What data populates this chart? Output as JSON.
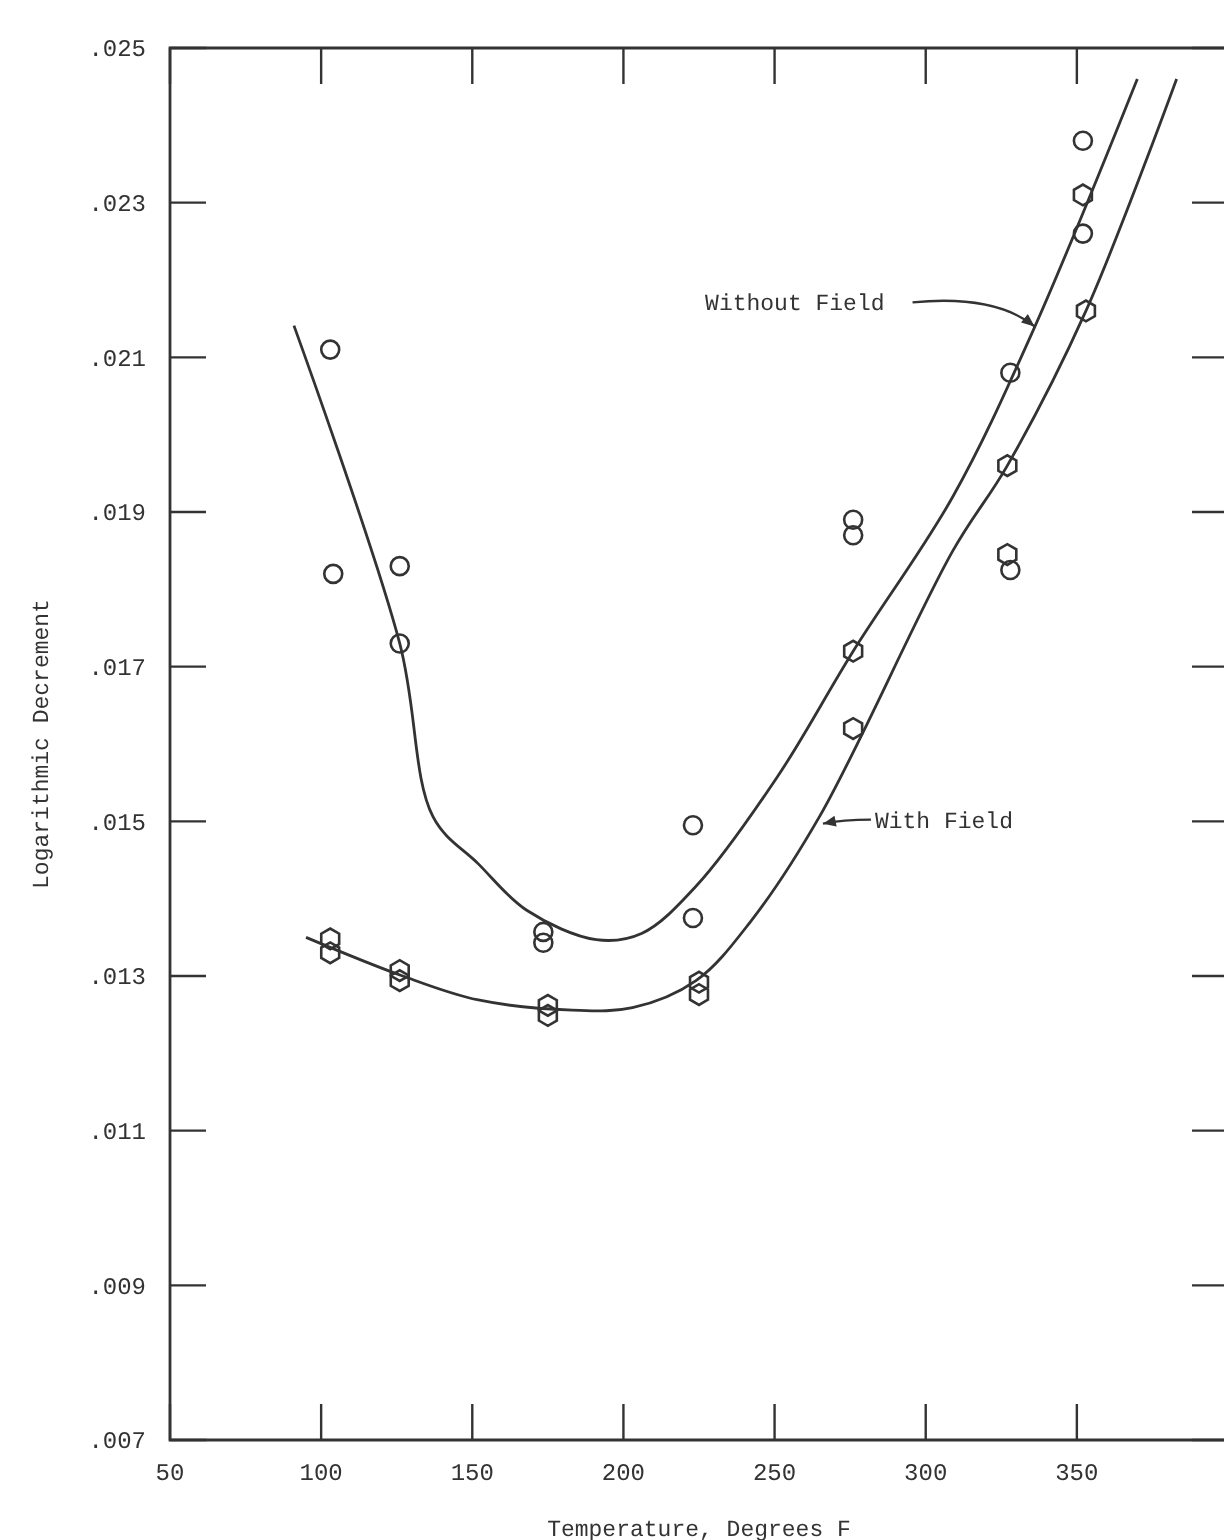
{
  "chart_data": {
    "type": "scatter",
    "xlabel": "Temperature, Degrees F",
    "ylabel": "Logarithmic Decrement",
    "xlim": [
      50,
      400
    ],
    "xticks": [
      50,
      100,
      150,
      200,
      250,
      300,
      350
    ],
    "ylim": [
      0.007,
      0.025
    ],
    "yticks": [
      {
        "value": 0.007,
        "label": ".007"
      },
      {
        "value": 0.009,
        "label": ".009"
      },
      {
        "value": 0.011,
        "label": ".011"
      },
      {
        "value": 0.013,
        "label": ".013"
      },
      {
        "value": 0.015,
        "label": ".015"
      },
      {
        "value": 0.017,
        "label": ".017"
      },
      {
        "value": 0.019,
        "label": ".019"
      },
      {
        "value": 0.021,
        "label": ".021"
      },
      {
        "value": 0.023,
        "label": ".023"
      },
      {
        "value": 0.025,
        "label": ".025"
      }
    ],
    "grid": false,
    "series": [
      {
        "marker": "circle",
        "color": "#333333",
        "x": [
          103,
          104,
          126,
          126,
          173.5,
          173.5,
          223,
          223,
          276,
          276,
          328,
          328,
          352,
          352
        ],
        "values": [
          0.0211,
          0.0182,
          0.0183,
          0.0173,
          0.01357,
          0.01343,
          0.01495,
          0.01375,
          0.0189,
          0.0187,
          0.0208,
          0.01825,
          0.0238,
          0.0226
        ]
      },
      {
        "color": "#333333",
        "x": [
          103,
          103,
          126,
          126,
          175,
          175,
          225,
          225,
          276,
          276,
          327,
          327,
          352,
          353
        ],
        "values": [
          0.01348,
          0.0133,
          0.01307,
          0.01294,
          0.01262,
          0.01249,
          0.01292,
          0.01276,
          0.0172,
          0.0162,
          0.0196,
          0.01845,
          0.0231,
          0.0216
        ]
      },
      {
        "type": "line",
        "marker": "none",
        "line_style": "solid",
        "color": "#333333",
        "x": [
          91,
          126,
          137,
          152,
          168,
          191,
          206,
          224,
          251,
          276,
          309,
          335,
          370
        ],
        "values": [
          0.02141,
          0.0173,
          0.01506,
          0.01445,
          0.01385,
          0.01347,
          0.01355,
          0.01416,
          0.01558,
          0.0172,
          0.0192,
          0.0213,
          0.0246
        ]
      },
      {
        "type": "line",
        "marker": "none",
        "line_style": "solid",
        "color": "#333333",
        "x": [
          95,
          127,
          152,
          183,
          203,
          224,
          242,
          265,
          309,
          327,
          353,
          383
        ],
        "values": [
          0.0135,
          0.013,
          0.01269,
          0.01256,
          0.01259,
          0.01294,
          0.0137,
          0.01507,
          0.0185,
          0.0196,
          0.0216,
          0.0246
        ]
      }
    ],
    "annotations": [
      {
        "text": "Without Field",
        "x": 336,
        "y": 0.0214
      },
      {
        "text": "With Field",
        "x": 266,
        "y": 0.01497
      }
    ]
  }
}
